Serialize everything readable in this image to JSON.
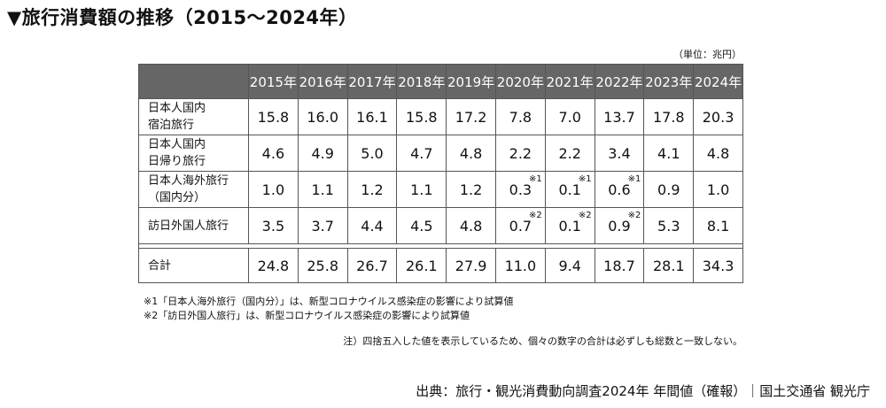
{
  "title": "▼旅行消費額の推移（2015～2024年）",
  "unit": "（単位：兆円）",
  "years": [
    "2015年",
    "2016年",
    "2017年",
    "2018年",
    "2019年",
    "2020年",
    "2021年",
    "2022年",
    "2023年",
    "2024年"
  ],
  "rows": [
    {
      "label1": "日本人国内",
      "label2": "宿泊旅行",
      "values": [
        "15.8",
        "16.0",
        "16.1",
        "15.8",
        "17.2",
        "7.8",
        "7.0",
        "13.7",
        "17.8",
        "20.3"
      ],
      "marks": [
        "",
        "",
        "",
        "",
        "",
        "",
        "",
        "",
        "",
        ""
      ]
    },
    {
      "label1": "日本人国内",
      "label2": "日帰り旅行",
      "values": [
        "4.6",
        "4.9",
        "5.0",
        "4.7",
        "4.8",
        "2.2",
        "2.2",
        "3.4",
        "4.1",
        "4.8"
      ],
      "marks": [
        "",
        "",
        "",
        "",
        "",
        "",
        "",
        "",
        "",
        ""
      ]
    },
    {
      "label1": "日本人海外旅行",
      "label2": "（国内分）",
      "values": [
        "1.0",
        "1.1",
        "1.2",
        "1.1",
        "1.2",
        "0.3",
        "0.1",
        "0.6",
        "0.9",
        "1.0"
      ],
      "marks": [
        "",
        "",
        "",
        "",
        "",
        "※1",
        "※1",
        "※1",
        "",
        ""
      ]
    },
    {
      "label1": "訪日外国人旅行",
      "label2": "",
      "values": [
        "3.5",
        "3.7",
        "4.4",
        "4.5",
        "4.8",
        "0.7",
        "0.1",
        "0.9",
        "5.3",
        "8.1"
      ],
      "marks": [
        "",
        "",
        "",
        "",
        "",
        "※2",
        "※2",
        "※2",
        "",
        ""
      ]
    }
  ],
  "total": {
    "label": "合計",
    "values": [
      "24.8",
      "25.8",
      "26.7",
      "26.1",
      "27.9",
      "11.0",
      "9.4",
      "18.7",
      "28.1",
      "34.3"
    ]
  },
  "notes": [
    "※1「日本人海外旅行（国内分）」は、新型コロナウイルス感染症の影響により試算値",
    "※2「訪日外国人旅行」は、新型コロナウイルス感染症の影響により試算値"
  ],
  "caveat": "注）四捨五入した値を表示しているため、個々の数字の合計は必ずしも総数と一致しない。",
  "source": "出典：旅行・観光消費動向調査2024年 年間値（確報）｜国土交通省 観光庁"
}
